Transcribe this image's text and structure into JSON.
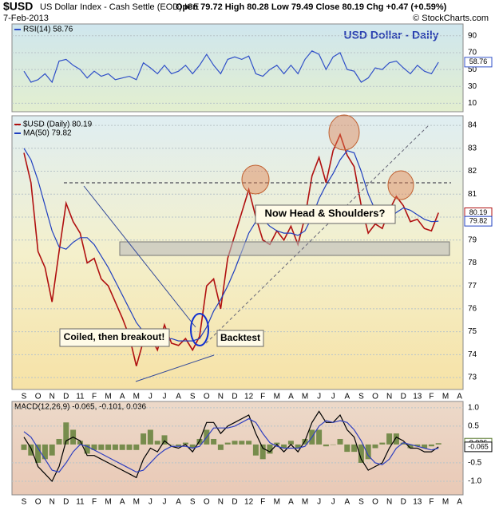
{
  "header": {
    "symbol": "$USD",
    "name": "US Dollar Index - Cash Settle (EOD) ICE",
    "date": "7-Feb-2013",
    "quote": "Open 79.72  High 80.28  Low 79.49  Close 80.19  Chg +0.47 (+0.59%)",
    "credit": "© StockCharts.com"
  },
  "chart_data": [
    {
      "type": "line",
      "ylim": [
        0,
        104
      ],
      "yticks": [
        10,
        30,
        50,
        70,
        90
      ],
      "grid": true,
      "series": [
        {
          "name": "RSI(14) 58.76",
          "color": "#3050c8",
          "tag": "58.76",
          "values": [
            48,
            35,
            38,
            45,
            35,
            60,
            62,
            55,
            50,
            40,
            48,
            42,
            45,
            38,
            40,
            42,
            38,
            58,
            52,
            45,
            55,
            45,
            48,
            55,
            45,
            55,
            68,
            55,
            45,
            62,
            65,
            62,
            66,
            45,
            42,
            50,
            55,
            45,
            55,
            45,
            62,
            72,
            68,
            50,
            65,
            70,
            50,
            48,
            35,
            40,
            52,
            50,
            58,
            60,
            52,
            45,
            55,
            48,
            45,
            58.76,
            null,
            null,
            null,
            null
          ]
        }
      ]
    },
    {
      "type": "line",
      "title": "USD Dollar - Daily",
      "ylim": [
        72.48,
        84.42
      ],
      "yticks": [
        73,
        74,
        75,
        76,
        77,
        78,
        79,
        80,
        81,
        82,
        83,
        84
      ],
      "grid": true,
      "categories": [
        "S",
        null,
        "O",
        null,
        "N",
        null,
        "D",
        null,
        "11",
        null,
        "F",
        null,
        "M",
        null,
        "A",
        null,
        "M",
        null,
        "J",
        null,
        "J",
        null,
        "A",
        null,
        "S",
        null,
        "O",
        null,
        "N",
        null,
        "D",
        null,
        "12",
        null,
        "F",
        null,
        "M",
        null,
        "A",
        null,
        "M",
        null,
        "J",
        null,
        "J",
        null,
        "A",
        null,
        "S",
        null,
        "O",
        null,
        "N",
        null,
        "D",
        null,
        "13",
        null,
        "F",
        null,
        "M",
        null,
        "A",
        null
      ],
      "annotations": [
        "Coiled, then breakout!",
        "Backtest",
        "Now Head & Shoulders?"
      ],
      "series": [
        {
          "name": "$USD (Daily) 80.19",
          "color": "#b01010",
          "tag": "80.19",
          "values": [
            82.8,
            81.5,
            78.5,
            77.8,
            76.3,
            78.5,
            80.6,
            79.8,
            79.3,
            78.0,
            78.2,
            77.3,
            77.0,
            76.3,
            75.6,
            74.8,
            73.5,
            74.6,
            74.8,
            74.2,
            75.3,
            74.5,
            74.4,
            74.7,
            74.2,
            74.8,
            77.0,
            77.3,
            76.0,
            78.2,
            79.2,
            80.2,
            81.2,
            80.0,
            79.0,
            78.8,
            79.4,
            79.0,
            79.6,
            78.8,
            80.0,
            81.8,
            82.6,
            81.5,
            82.9,
            83.6,
            82.7,
            82.2,
            80.5,
            79.3,
            79.7,
            79.5,
            80.3,
            80.9,
            80.5,
            79.8,
            79.9,
            79.5,
            79.4,
            80.19,
            null,
            null,
            null,
            null
          ]
        },
        {
          "name": "MA(50) 79.82",
          "color": "#1f3fbf",
          "tag": "79.82",
          "values": [
            83.0,
            82.5,
            81.6,
            80.5,
            79.4,
            78.7,
            78.6,
            78.9,
            79.1,
            79.1,
            78.8,
            78.3,
            77.8,
            77.2,
            76.6,
            76.0,
            75.4,
            75.0,
            74.7,
            74.6,
            74.6,
            74.7,
            74.6,
            74.6,
            74.6,
            74.7,
            75.2,
            75.9,
            76.4,
            77.0,
            77.7,
            78.5,
            79.3,
            79.8,
            79.9,
            79.6,
            79.4,
            79.3,
            79.3,
            79.2,
            79.4,
            80.0,
            80.8,
            81.4,
            81.9,
            82.5,
            82.9,
            82.8,
            82.0,
            81.0,
            80.3,
            79.9,
            79.9,
            80.2,
            80.4,
            80.3,
            80.1,
            79.9,
            79.8,
            79.82,
            null,
            null,
            null,
            null
          ]
        }
      ]
    },
    {
      "type": "line",
      "label": "MACD(12,26,9) -0.065, -0.101, 0.036",
      "ylim": [
        -1.37,
        1.17
      ],
      "yticks": [
        {
          "value": 1,
          "label": "1.0"
        },
        0.5,
        -0.5,
        {
          "value": -1,
          "label": "-1.0"
        }
      ],
      "grid": true,
      "categories": [
        "S",
        null,
        "O",
        null,
        "N",
        null,
        "D",
        null,
        "11",
        null,
        "F",
        null,
        "M",
        null,
        "A",
        null,
        "M",
        null,
        "J",
        null,
        "J",
        null,
        "A",
        null,
        "S",
        null,
        "O",
        null,
        "N",
        null,
        "D",
        null,
        "12",
        null,
        "F",
        null,
        "M",
        null,
        "A",
        null,
        "M",
        null,
        "J",
        null,
        "J",
        null,
        "A",
        null,
        "S",
        null,
        "O",
        null,
        "N",
        null,
        "D",
        null,
        "13",
        null,
        "F",
        null,
        "M",
        null,
        "A",
        null
      ],
      "series": [
        {
          "type": "bar",
          "color": "#5a7a30",
          "tag": "0.036",
          "values": [
            -0.15,
            -0.3,
            -0.5,
            -0.4,
            -0.3,
            0.15,
            0.6,
            0.4,
            0.1,
            -0.25,
            -0.15,
            -0.15,
            -0.15,
            -0.15,
            -0.15,
            -0.15,
            -0.15,
            0.3,
            0.4,
            0.1,
            0.25,
            0.0,
            -0.05,
            0.05,
            -0.1,
            0.15,
            0.4,
            0.15,
            -0.15,
            0.05,
            0.1,
            0.1,
            0.1,
            -0.3,
            -0.4,
            -0.25,
            0.05,
            -0.1,
            0.1,
            -0.1,
            0.15,
            0.4,
            0.4,
            -0.05,
            0.0,
            0.15,
            -0.2,
            -0.2,
            -0.5,
            -0.4,
            -0.1,
            0.05,
            0.3,
            0.3,
            0.05,
            -0.1,
            -0.05,
            -0.1,
            -0.05,
            0.036,
            null,
            null,
            null,
            null
          ]
        },
        {
          "color": "#000000",
          "tag": "-0.065",
          "values": [
            0.2,
            -0.1,
            -0.6,
            -0.8,
            -1.0,
            -0.6,
            0.1,
            0.2,
            0.1,
            -0.3,
            -0.3,
            -0.4,
            -0.5,
            -0.6,
            -0.7,
            -0.8,
            -0.9,
            -0.4,
            -0.1,
            -0.2,
            0.1,
            -0.05,
            -0.1,
            0.0,
            -0.2,
            0.1,
            0.6,
            0.6,
            0.3,
            0.5,
            0.6,
            0.7,
            0.8,
            0.3,
            -0.1,
            -0.2,
            0.0,
            -0.2,
            0.0,
            -0.2,
            0.1,
            0.6,
            0.9,
            0.6,
            0.6,
            0.8,
            0.4,
            0.2,
            -0.4,
            -0.7,
            -0.6,
            -0.5,
            -0.1,
            0.2,
            0.1,
            -0.1,
            -0.1,
            -0.2,
            -0.2,
            -0.065,
            null,
            null,
            null,
            null
          ]
        },
        {
          "color": "#3040c0",
          "values": [
            0.35,
            0.2,
            -0.1,
            -0.4,
            -0.7,
            -0.75,
            -0.5,
            -0.2,
            0.0,
            -0.05,
            -0.15,
            -0.25,
            -0.35,
            -0.45,
            -0.55,
            -0.65,
            -0.75,
            -0.7,
            -0.5,
            -0.3,
            -0.15,
            -0.05,
            -0.05,
            -0.05,
            -0.1,
            -0.05,
            0.2,
            0.45,
            0.45,
            0.45,
            0.5,
            0.6,
            0.7,
            0.6,
            0.3,
            0.05,
            -0.05,
            -0.1,
            -0.1,
            -0.1,
            -0.05,
            0.2,
            0.5,
            0.65,
            0.6,
            0.65,
            0.6,
            0.4,
            0.1,
            -0.3,
            -0.5,
            -0.55,
            -0.4,
            -0.1,
            0.05,
            0.0,
            -0.05,
            -0.1,
            -0.15,
            -0.101,
            null,
            null,
            null,
            null
          ]
        }
      ]
    }
  ]
}
